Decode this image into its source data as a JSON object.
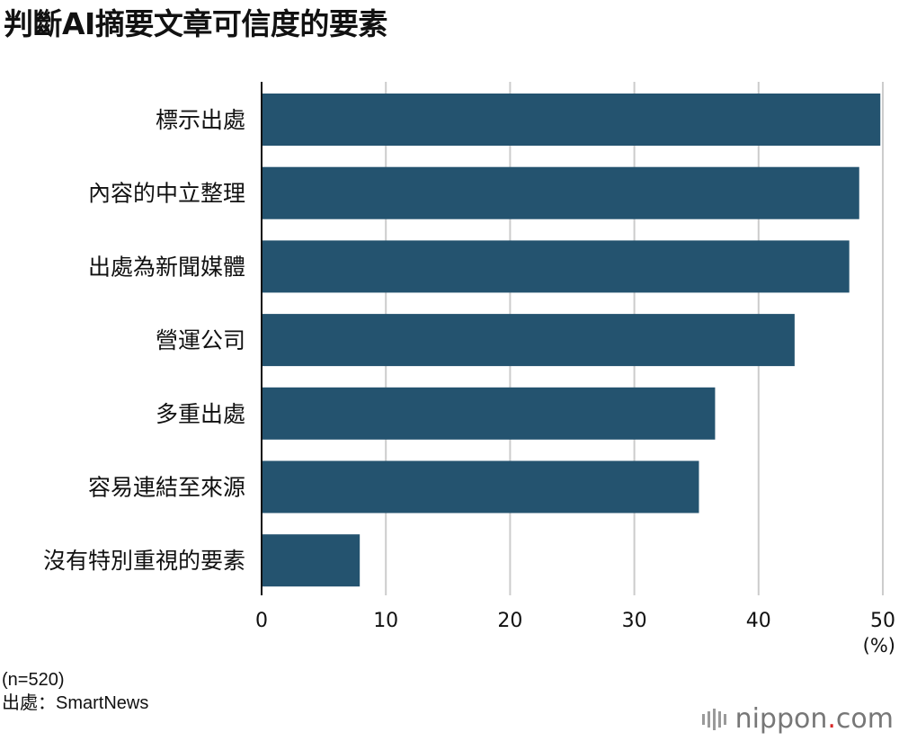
{
  "title": "判斷AI摘要文章可信度的要素",
  "chart_data": {
    "type": "bar",
    "orientation": "horizontal",
    "title": "判斷AI摘要文章可信度的要素",
    "categories": [
      "標示出處",
      "內容的中立整理",
      "出處為新聞媒體",
      "營運公司",
      "多重出處",
      "容易連結至來源",
      "沒有特別重視的要素"
    ],
    "values": [
      49.8,
      48.1,
      47.3,
      42.9,
      36.5,
      35.2,
      7.9
    ],
    "xlim": [
      0,
      50
    ],
    "xticks": [
      0,
      10,
      20,
      30,
      40,
      50
    ],
    "xunit": "(%)",
    "grid": true,
    "bar_color": "#24536f",
    "grid_color": "#cccccc"
  },
  "notes": {
    "sample": "(n=520)",
    "source": "出處：SmartNews"
  },
  "logo": {
    "text_main": "nippon",
    "text_dot": ".",
    "text_tld": "com",
    "dot_color": "#d62828"
  }
}
